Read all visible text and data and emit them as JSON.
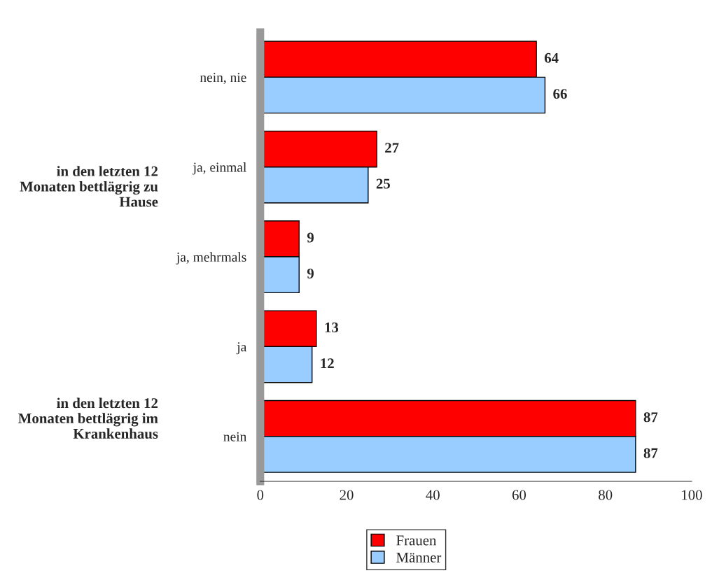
{
  "chart_data": {
    "type": "bar",
    "orientation": "horizontal",
    "categories": [
      "nein, nie",
      "ja, einmal",
      "ja, mehrmals",
      "ja",
      "nein"
    ],
    "series": [
      {
        "name": "Frauen",
        "color": "#ff0000",
        "values": [
          64,
          27,
          9,
          13,
          87
        ]
      },
      {
        "name": "Männer",
        "color": "#99ccff",
        "values": [
          66,
          25,
          9,
          12,
          87
        ]
      }
    ],
    "xlim": [
      0,
      100
    ],
    "xticks": [
      0,
      20,
      40,
      60,
      80,
      100
    ],
    "data_labels": true,
    "legend": "bottom",
    "grid": false,
    "annotations": [
      "in den letzten 12 Monaten bettlägrig zu Hause",
      "in den letzten 12 Monaten bettlägrig im Krankenhaus"
    ]
  }
}
